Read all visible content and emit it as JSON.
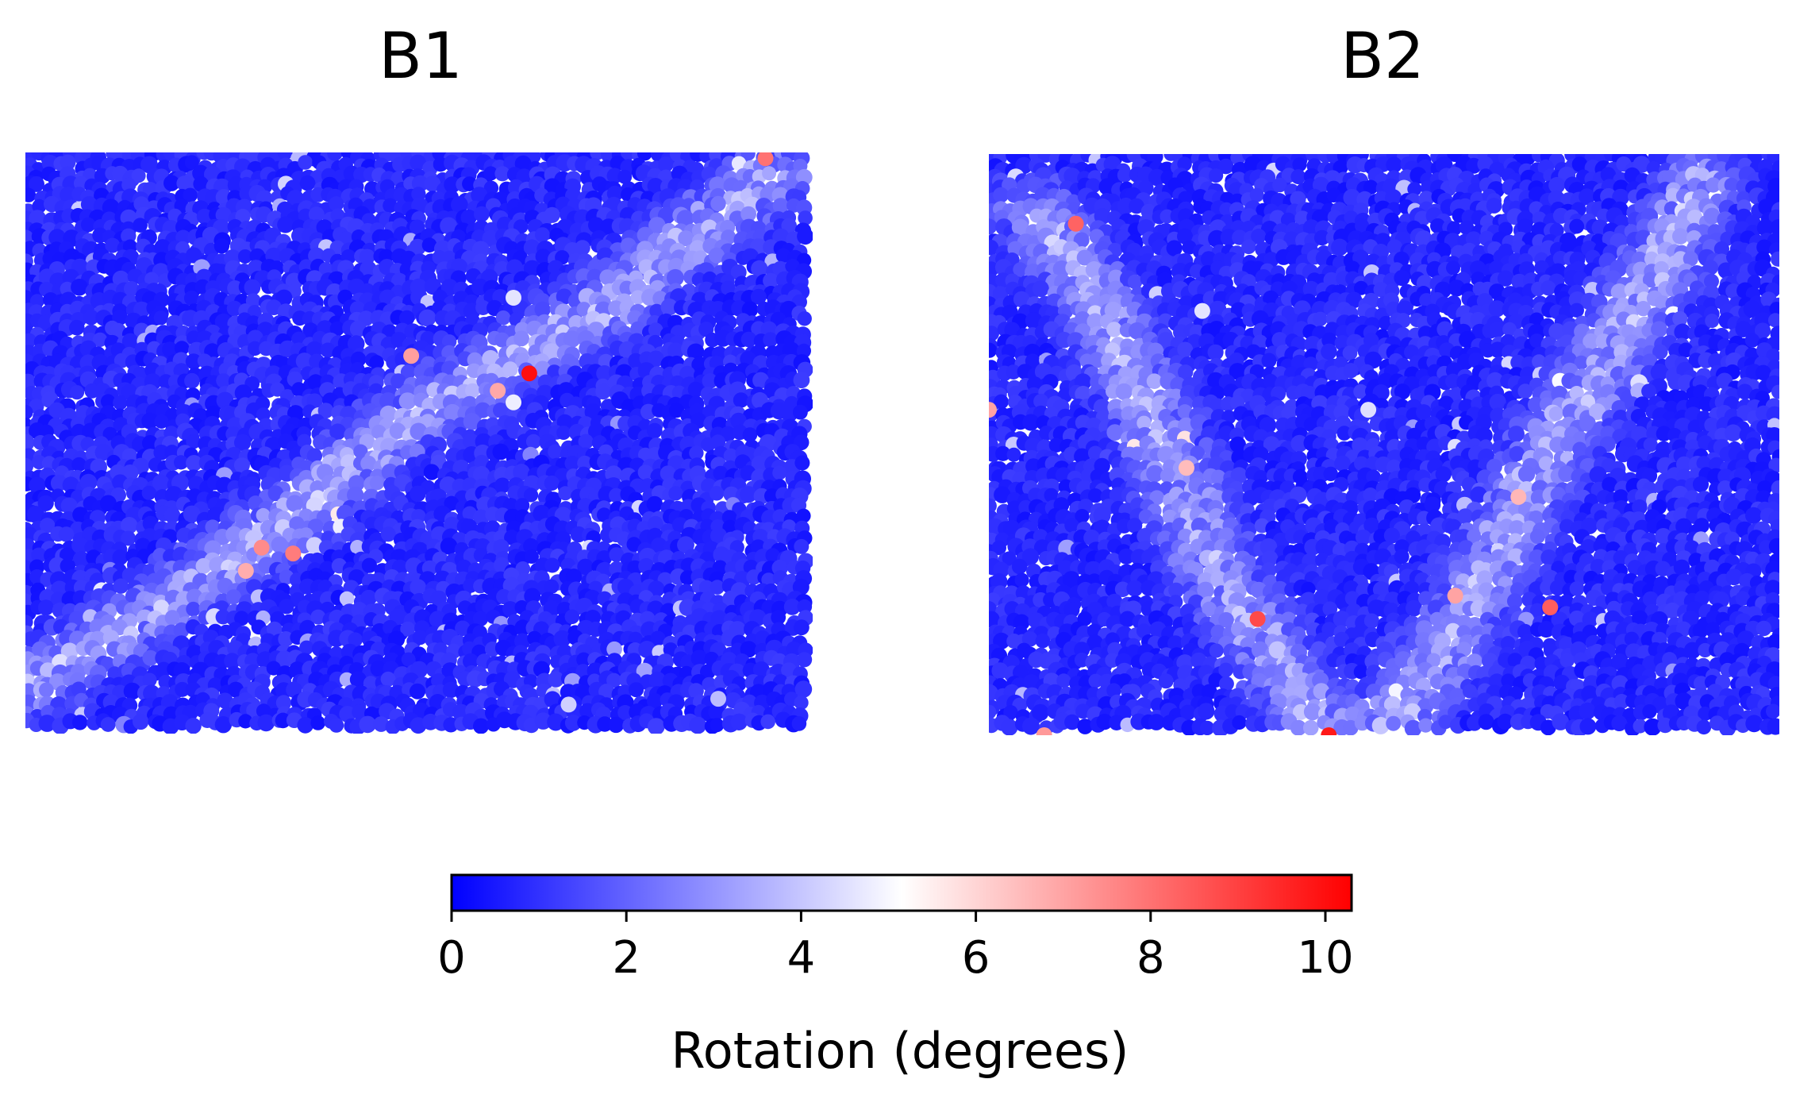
{
  "chart_data": [
    {
      "type": "scatter",
      "title": "B1",
      "colormap": "bwr",
      "color_range": [
        0,
        10.3
      ],
      "background_value": 0.35,
      "band": {
        "description": "shear band of elevated rotation running from lower-left to upper-right",
        "points": [
          [
            0.0,
            0.92
          ],
          [
            0.27,
            0.7
          ],
          [
            0.5,
            0.45
          ],
          [
            0.72,
            0.28
          ],
          [
            0.95,
            0.04
          ]
        ],
        "peak_rotation_deg": 3.2
      },
      "hot_points": [
        {
          "x": 0.64,
          "y": 0.38,
          "rotation_deg": 10.0
        },
        {
          "x": 0.3,
          "y": 0.68,
          "rotation_deg": 7.5
        },
        {
          "x": 0.34,
          "y": 0.69,
          "rotation_deg": 7.8
        },
        {
          "x": 0.6,
          "y": 0.41,
          "rotation_deg": 6.9
        },
        {
          "x": 0.28,
          "y": 0.72,
          "rotation_deg": 6.8
        },
        {
          "x": 0.49,
          "y": 0.35,
          "rotation_deg": 7.1
        },
        {
          "x": 0.94,
          "y": 0.01,
          "rotation_deg": 8.0
        },
        {
          "x": 0.62,
          "y": 0.43,
          "rotation_deg": 4.8
        },
        {
          "x": 0.62,
          "y": 0.25,
          "rotation_deg": 4.6
        },
        {
          "x": 0.69,
          "y": 0.95,
          "rotation_deg": 4.2
        },
        {
          "x": 0.88,
          "y": 0.94,
          "rotation_deg": 3.8
        }
      ],
      "xlabel": "",
      "ylabel": ""
    },
    {
      "type": "scatter",
      "title": "B2",
      "colormap": "bwr",
      "color_range": [
        0,
        10.3
      ],
      "background_value": 0.35,
      "band": {
        "description": "V-shaped pair of shear bands meeting near the bottom center",
        "points": [
          [
            0.06,
            0.1
          ],
          [
            0.15,
            0.28
          ],
          [
            0.22,
            0.5
          ],
          [
            0.3,
            0.75
          ],
          [
            0.42,
            0.98
          ],
          [
            0.52,
            0.98
          ],
          [
            0.62,
            0.75
          ],
          [
            0.72,
            0.48
          ],
          [
            0.83,
            0.25
          ],
          [
            0.9,
            0.05
          ]
        ],
        "peak_rotation_deg": 3.2
      },
      "hot_points": [
        {
          "x": 0.0,
          "y": 0.44,
          "rotation_deg": 7.0
        },
        {
          "x": 0.25,
          "y": 0.54,
          "rotation_deg": 6.5
        },
        {
          "x": 0.67,
          "y": 0.59,
          "rotation_deg": 6.6
        },
        {
          "x": 0.59,
          "y": 0.76,
          "rotation_deg": 7.0
        },
        {
          "x": 0.71,
          "y": 0.78,
          "rotation_deg": 8.4
        },
        {
          "x": 0.34,
          "y": 0.8,
          "rotation_deg": 8.8
        },
        {
          "x": 0.43,
          "y": 1.0,
          "rotation_deg": 9.8
        },
        {
          "x": 0.07,
          "y": 1.0,
          "rotation_deg": 7.2
        },
        {
          "x": 0.11,
          "y": 0.12,
          "rotation_deg": 8.3
        },
        {
          "x": 0.27,
          "y": 0.27,
          "rotation_deg": 4.6
        },
        {
          "x": 0.48,
          "y": 0.44,
          "rotation_deg": 4.5
        }
      ],
      "xlabel": "",
      "ylabel": ""
    }
  ],
  "colorbar": {
    "label": "Rotation (degrees)",
    "min": 0,
    "max": 10.3,
    "ticks": [
      {
        "value": 0,
        "label": "0"
      },
      {
        "value": 2,
        "label": "2"
      },
      {
        "value": 4,
        "label": "4"
      },
      {
        "value": 6,
        "label": "6"
      },
      {
        "value": 8,
        "label": "8"
      },
      {
        "value": 10,
        "label": "10"
      }
    ],
    "colors": {
      "low": "#0000ff",
      "mid": "#ffffff",
      "high": "#ff0000"
    }
  }
}
